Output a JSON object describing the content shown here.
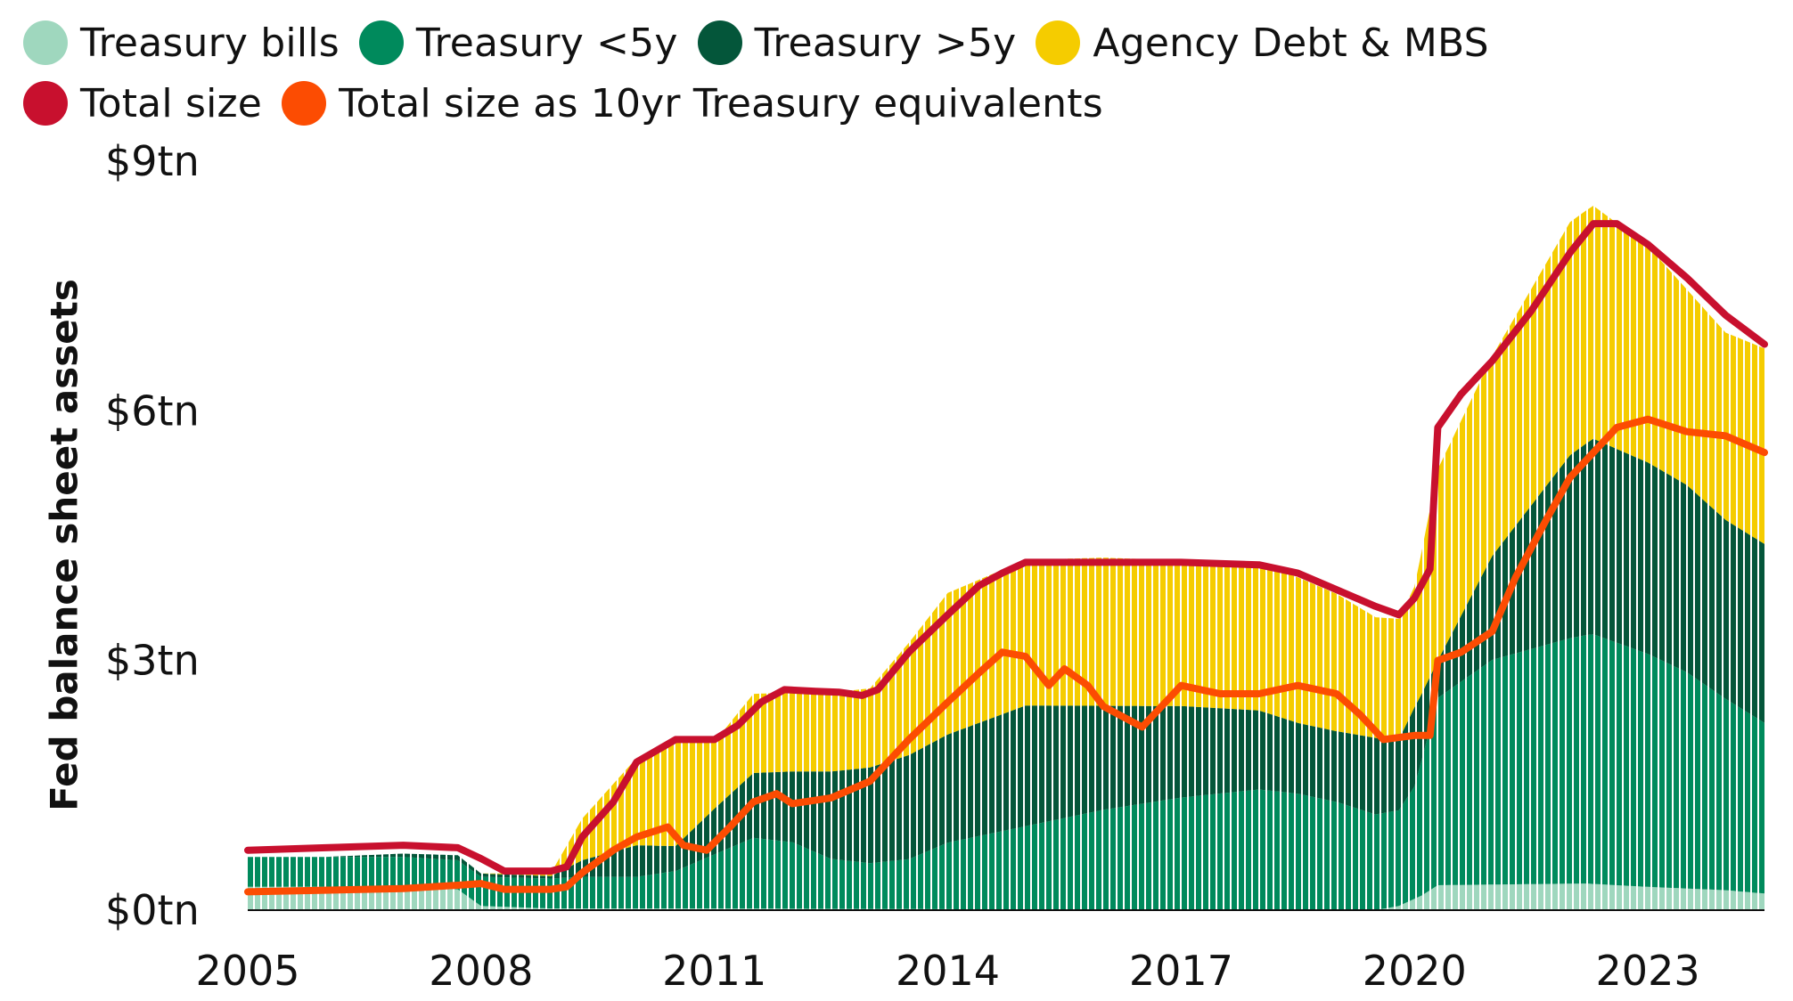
{
  "chart_data": {
    "type": "area",
    "ylabel": "Fed balance sheet assets",
    "ylim": [
      0,
      9
    ],
    "y_ticks": [
      {
        "value": 0,
        "label": "$0tn"
      },
      {
        "value": 3,
        "label": "$3tn"
      },
      {
        "value": 6,
        "label": "$6tn"
      },
      {
        "value": 9,
        "label": "$9tn"
      }
    ],
    "xlim": [
      2005,
      2024.5
    ],
    "x_ticks": [
      "2005",
      "2008",
      "2011",
      "2014",
      "2017",
      "2020",
      "2023"
    ],
    "legend_position": "top-left",
    "stack_series": [
      {
        "name": "Treasury bills",
        "color": "#9fd7be",
        "points": [
          [
            2005,
            0.28
          ],
          [
            2006,
            0.28
          ],
          [
            2007,
            0.28
          ],
          [
            2007.7,
            0.25
          ],
          [
            2008,
            0.05
          ],
          [
            2008.9,
            0.02
          ],
          [
            2011,
            0.02
          ],
          [
            2018,
            0.0
          ],
          [
            2019.5,
            0.0
          ],
          [
            2019.8,
            0.05
          ],
          [
            2020.1,
            0.18
          ],
          [
            2020.3,
            0.3
          ],
          [
            2022.2,
            0.32
          ],
          [
            2023,
            0.28
          ],
          [
            2024,
            0.24
          ],
          [
            2024.5,
            0.2
          ]
        ]
      },
      {
        "name": "Treasury <5y",
        "color": "#008a5c",
        "points": [
          [
            2005,
            0.36
          ],
          [
            2006,
            0.36
          ],
          [
            2007,
            0.36
          ],
          [
            2007.7,
            0.35
          ],
          [
            2008,
            0.35
          ],
          [
            2008.9,
            0.36
          ],
          [
            2009.3,
            0.38
          ],
          [
            2010,
            0.38
          ],
          [
            2010.5,
            0.45
          ],
          [
            2011,
            0.65
          ],
          [
            2011.5,
            0.85
          ],
          [
            2012,
            0.8
          ],
          [
            2012.5,
            0.6
          ],
          [
            2013,
            0.55
          ],
          [
            2013.5,
            0.6
          ],
          [
            2014,
            0.8
          ],
          [
            2015,
            1.0
          ],
          [
            2016,
            1.2
          ],
          [
            2017,
            1.35
          ],
          [
            2018,
            1.45
          ],
          [
            2018.5,
            1.4
          ],
          [
            2019,
            1.3
          ],
          [
            2019.5,
            1.15
          ],
          [
            2019.8,
            1.15
          ],
          [
            2020,
            1.35
          ],
          [
            2020.3,
            2.25
          ],
          [
            2021,
            2.7
          ],
          [
            2022,
            2.95
          ],
          [
            2022.3,
            3.0
          ],
          [
            2023,
            2.8
          ],
          [
            2023.5,
            2.6
          ],
          [
            2024,
            2.3
          ],
          [
            2024.5,
            2.05
          ]
        ]
      },
      {
        "name": "Treasury >5y",
        "color": "#04563a",
        "points": [
          [
            2005,
            0.0
          ],
          [
            2006,
            0.0
          ],
          [
            2007,
            0.04
          ],
          [
            2007.7,
            0.06
          ],
          [
            2008,
            0.04
          ],
          [
            2008.9,
            0.03
          ],
          [
            2009.3,
            0.2
          ],
          [
            2010,
            0.38
          ],
          [
            2010.5,
            0.3
          ],
          [
            2011,
            0.55
          ],
          [
            2011.5,
            0.78
          ],
          [
            2012,
            0.85
          ],
          [
            2012.5,
            1.05
          ],
          [
            2013,
            1.15
          ],
          [
            2013.5,
            1.25
          ],
          [
            2014,
            1.3
          ],
          [
            2015,
            1.45
          ],
          [
            2016,
            1.25
          ],
          [
            2017,
            1.1
          ],
          [
            2018,
            0.95
          ],
          [
            2018.5,
            0.85
          ],
          [
            2019,
            0.85
          ],
          [
            2019.5,
            0.92
          ],
          [
            2019.8,
            0.85
          ],
          [
            2020,
            0.95
          ],
          [
            2020.3,
            0.45
          ],
          [
            2021,
            1.25
          ],
          [
            2022,
            2.2
          ],
          [
            2022.3,
            2.35
          ],
          [
            2023,
            2.3
          ],
          [
            2023.5,
            2.25
          ],
          [
            2024,
            2.15
          ],
          [
            2024.5,
            2.15
          ]
        ]
      },
      {
        "name": "Agency Debt & MBS",
        "color": "#f5cc00",
        "points": [
          [
            2005,
            0.0
          ],
          [
            2006,
            0.0
          ],
          [
            2007,
            0.0
          ],
          [
            2007.7,
            0.0
          ],
          [
            2008,
            0.0
          ],
          [
            2008.9,
            0.04
          ],
          [
            2009.3,
            0.5
          ],
          [
            2010,
            1.05
          ],
          [
            2010.5,
            1.25
          ],
          [
            2011,
            0.8
          ],
          [
            2011.5,
            0.95
          ],
          [
            2012,
            0.95
          ],
          [
            2012.5,
            0.95
          ],
          [
            2013,
            0.95
          ],
          [
            2013.5,
            1.35
          ],
          [
            2014,
            1.7
          ],
          [
            2015,
            1.75
          ],
          [
            2016,
            1.78
          ],
          [
            2017,
            1.75
          ],
          [
            2018,
            1.75
          ],
          [
            2018.5,
            1.75
          ],
          [
            2019,
            1.65
          ],
          [
            2019.5,
            1.45
          ],
          [
            2019.8,
            1.45
          ],
          [
            2020,
            1.45
          ],
          [
            2020.3,
            2.3
          ],
          [
            2021,
            2.4
          ],
          [
            2022,
            2.8
          ],
          [
            2022.3,
            2.8
          ],
          [
            2023,
            2.6
          ],
          [
            2023.5,
            2.35
          ],
          [
            2024,
            2.25
          ],
          [
            2024.5,
            2.35
          ]
        ]
      }
    ],
    "line_series": [
      {
        "name": "Total size",
        "color": "#c8102e",
        "points": [
          [
            2005,
            0.72
          ],
          [
            2006,
            0.75
          ],
          [
            2007,
            0.78
          ],
          [
            2007.7,
            0.75
          ],
          [
            2008,
            0.62
          ],
          [
            2008.3,
            0.47
          ],
          [
            2008.9,
            0.47
          ],
          [
            2009.1,
            0.52
          ],
          [
            2009.3,
            0.88
          ],
          [
            2009.7,
            1.3
          ],
          [
            2010,
            1.78
          ],
          [
            2010.5,
            2.05
          ],
          [
            2011,
            2.05
          ],
          [
            2011.3,
            2.22
          ],
          [
            2011.6,
            2.5
          ],
          [
            2011.9,
            2.65
          ],
          [
            2012.3,
            2.63
          ],
          [
            2012.6,
            2.62
          ],
          [
            2012.9,
            2.58
          ],
          [
            2013.1,
            2.65
          ],
          [
            2013.5,
            3.1
          ],
          [
            2014,
            3.55
          ],
          [
            2014.4,
            3.9
          ],
          [
            2014.7,
            4.05
          ],
          [
            2015,
            4.18
          ],
          [
            2016,
            4.18
          ],
          [
            2017,
            4.18
          ],
          [
            2018,
            4.15
          ],
          [
            2018.5,
            4.05
          ],
          [
            2019,
            3.85
          ],
          [
            2019.5,
            3.65
          ],
          [
            2019.8,
            3.55
          ],
          [
            2020,
            3.75
          ],
          [
            2020.2,
            4.1
          ],
          [
            2020.3,
            5.8
          ],
          [
            2020.6,
            6.2
          ],
          [
            2021,
            6.6
          ],
          [
            2021.5,
            7.2
          ],
          [
            2022,
            7.9
          ],
          [
            2022.3,
            8.25
          ],
          [
            2022.6,
            8.25
          ],
          [
            2023,
            8.0
          ],
          [
            2023.5,
            7.6
          ],
          [
            2024,
            7.15
          ],
          [
            2024.5,
            6.8
          ]
        ]
      },
      {
        "name": "Total size as 10yr Treasury equivalents",
        "color": "#fc4c02",
        "points": [
          [
            2005,
            0.22
          ],
          [
            2006,
            0.24
          ],
          [
            2007,
            0.26
          ],
          [
            2007.7,
            0.3
          ],
          [
            2008,
            0.32
          ],
          [
            2008.3,
            0.25
          ],
          [
            2008.9,
            0.25
          ],
          [
            2009.1,
            0.28
          ],
          [
            2009.3,
            0.45
          ],
          [
            2009.7,
            0.72
          ],
          [
            2010,
            0.88
          ],
          [
            2010.4,
            1.0
          ],
          [
            2010.6,
            0.78
          ],
          [
            2010.9,
            0.72
          ],
          [
            2011.2,
            1.0
          ],
          [
            2011.5,
            1.3
          ],
          [
            2011.8,
            1.4
          ],
          [
            2012,
            1.28
          ],
          [
            2012.5,
            1.35
          ],
          [
            2013,
            1.55
          ],
          [
            2013.5,
            2.05
          ],
          [
            2014,
            2.5
          ],
          [
            2014.4,
            2.85
          ],
          [
            2014.7,
            3.1
          ],
          [
            2015,
            3.05
          ],
          [
            2015.3,
            2.7
          ],
          [
            2015.5,
            2.9
          ],
          [
            2015.8,
            2.7
          ],
          [
            2016,
            2.45
          ],
          [
            2016.3,
            2.3
          ],
          [
            2016.5,
            2.2
          ],
          [
            2016.7,
            2.4
          ],
          [
            2017,
            2.7
          ],
          [
            2017.5,
            2.6
          ],
          [
            2018,
            2.6
          ],
          [
            2018.5,
            2.7
          ],
          [
            2019,
            2.6
          ],
          [
            2019.3,
            2.35
          ],
          [
            2019.6,
            2.05
          ],
          [
            2020,
            2.1
          ],
          [
            2020.2,
            2.1
          ],
          [
            2020.3,
            3.0
          ],
          [
            2020.6,
            3.1
          ],
          [
            2021,
            3.35
          ],
          [
            2021.3,
            4.0
          ],
          [
            2021.7,
            4.7
          ],
          [
            2022,
            5.2
          ],
          [
            2022.3,
            5.5
          ],
          [
            2022.6,
            5.8
          ],
          [
            2023,
            5.9
          ],
          [
            2023.5,
            5.75
          ],
          [
            2024,
            5.7
          ],
          [
            2024.5,
            5.5
          ]
        ]
      }
    ]
  }
}
